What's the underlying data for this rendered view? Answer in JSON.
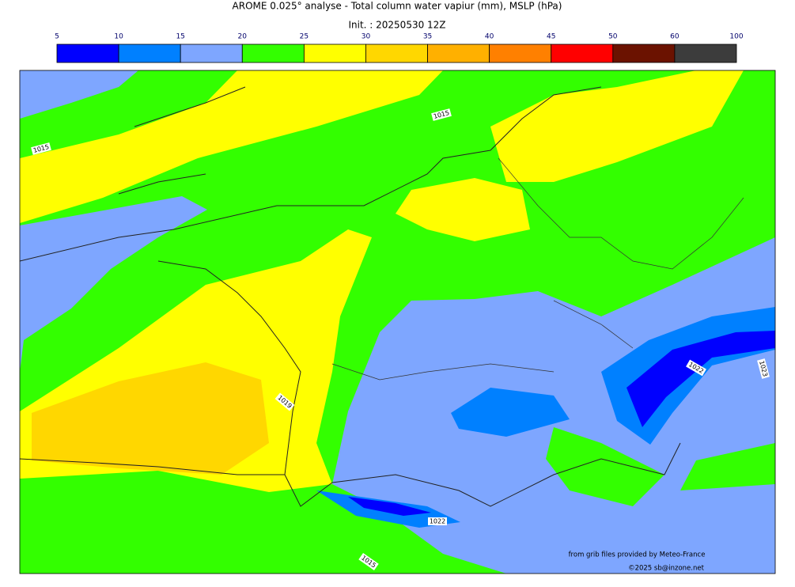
{
  "title": "AROME 0.025° analyse - Total column water vapiur (mm), MSLP (hPa)",
  "subtitle": "Init. : 20250530 12Z",
  "colorbar": {
    "ticks": [
      5,
      10,
      15,
      20,
      25,
      30,
      35,
      40,
      45,
      50,
      60,
      100
    ],
    "colors": [
      "#0000ff",
      "#0080ff",
      "#7ea6ff",
      "#33ff00",
      "#ffff00",
      "#ffd700",
      "#ffb000",
      "#ff8000",
      "#ff0000",
      "#6b1200",
      "#3c3c3c"
    ]
  },
  "contour_labels": [
    "1015",
    "1015",
    "1019",
    "1022",
    "1023",
    "1022",
    "1015"
  ],
  "credits": [
    "from grib files provided by Meteo-France",
    "©2025 sb@inzone.net"
  ]
}
